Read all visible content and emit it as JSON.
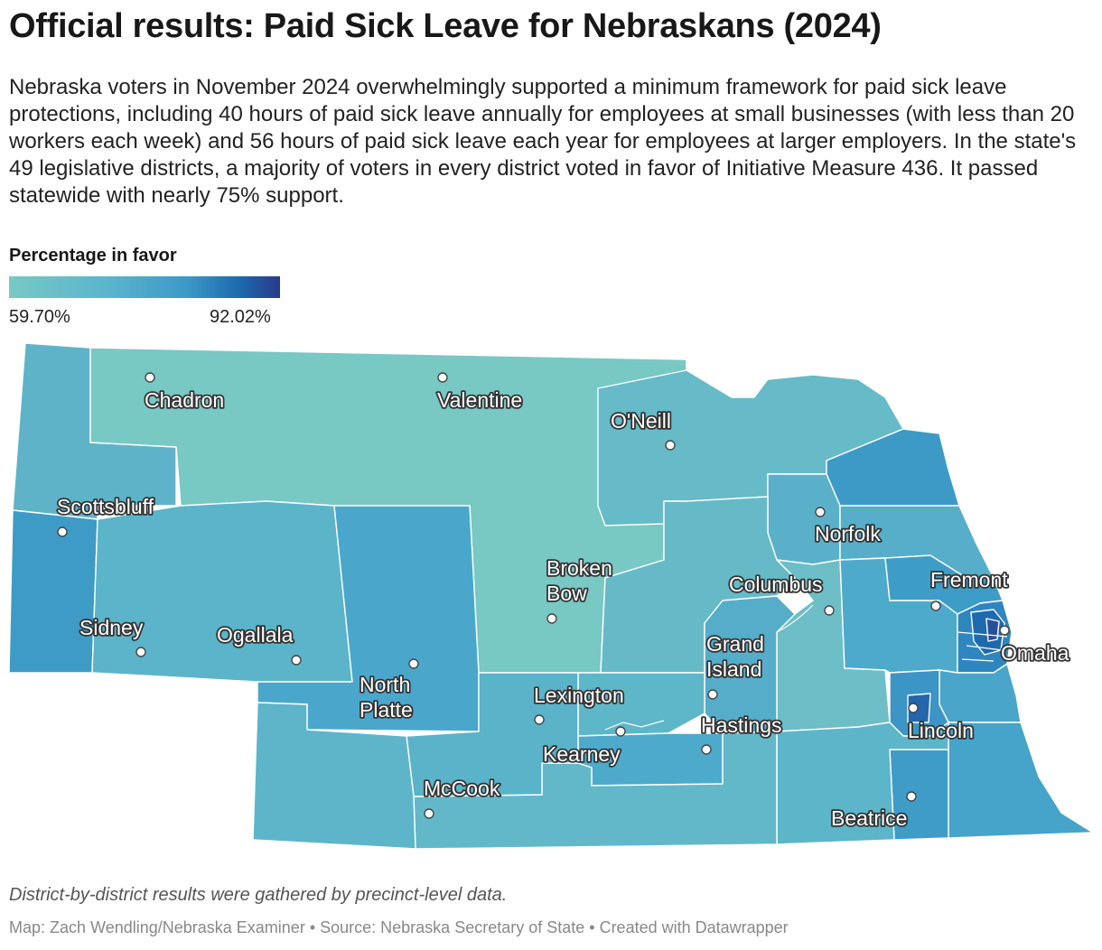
{
  "title": "Official results: Paid Sick Leave for Nebraskans (2024)",
  "description": "Nebraska voters in November 2024 overwhelmingly supported a minimum framework for paid sick leave protections, including 40 hours of paid sick leave annually for employees at small businesses (with less than 20 workers each week) and 56 hours of paid sick leave each year for employees at larger employers. In the state's 49 legislative districts, a majority of voters in every district voted in favor of Initiative Measure 436. It passed statewide with nearly 75% support.",
  "legend": {
    "title": "Percentage in favor",
    "min_label": "59.70%",
    "max_label": "92.02%",
    "colors": [
      "#78c8c4",
      "#5bb6cc",
      "#3d9ac6",
      "#1d6aad",
      "#2a3a8a"
    ]
  },
  "cities": [
    {
      "name": "Chadron",
      "lines": [
        "Chadron"
      ]
    },
    {
      "name": "Valentine",
      "lines": [
        "Valentine"
      ]
    },
    {
      "name": "O'Neill",
      "lines": [
        "O'Neill"
      ]
    },
    {
      "name": "Scottsbluff",
      "lines": [
        "Scottsbluff"
      ]
    },
    {
      "name": "Norfolk",
      "lines": [
        "Norfolk"
      ]
    },
    {
      "name": "Broken Bow",
      "lines": [
        "Broken",
        "Bow"
      ]
    },
    {
      "name": "Fremont",
      "lines": [
        "Fremont"
      ]
    },
    {
      "name": "Columbus",
      "lines": [
        "Columbus"
      ]
    },
    {
      "name": "Sidney",
      "lines": [
        "Sidney"
      ]
    },
    {
      "name": "Ogallala",
      "lines": [
        "Ogallala"
      ]
    },
    {
      "name": "Grand Island",
      "lines": [
        "Grand",
        "Island"
      ]
    },
    {
      "name": "Omaha",
      "lines": [
        "Omaha"
      ]
    },
    {
      "name": "North Platte",
      "lines": [
        "North",
        "Platte"
      ]
    },
    {
      "name": "Lexington",
      "lines": [
        "Lexington"
      ]
    },
    {
      "name": "Hastings",
      "lines": [
        "Hastings"
      ]
    },
    {
      "name": "Lincoln",
      "lines": [
        "Lincoln"
      ]
    },
    {
      "name": "Kearney",
      "lines": [
        "Kearney"
      ]
    },
    {
      "name": "McCook",
      "lines": [
        "McCook"
      ]
    },
    {
      "name": "Beatrice",
      "lines": [
        "Beatrice"
      ]
    }
  ],
  "footnote": "District-by-district results were gathered by precinct-level data.",
  "credits": "Map: Zach Wendling/Nebraska Examiner • Source: Nebraska Secretary of State • Created with Datawrapper"
}
